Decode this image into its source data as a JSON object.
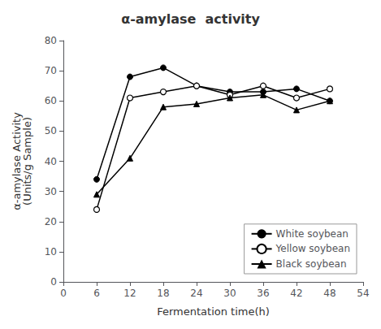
{
  "chart_data": {
    "type": "line",
    "title": "α-amylase  activity",
    "xlabel": "Fermentation time(h)",
    "ylabel": "α-amylase Activity\n(Units/g Sample)",
    "x": [
      6,
      12,
      18,
      24,
      30,
      36,
      42,
      48
    ],
    "series": [
      {
        "name": "White soybean",
        "color": "#000000",
        "marker": "circle",
        "values": [
          34,
          68,
          71,
          65,
          63,
          63,
          64,
          60
        ]
      },
      {
        "name": "Yellow soybean",
        "color": "#000000",
        "marker": "open-circle",
        "values": [
          24,
          61,
          63,
          65,
          62,
          65,
          61,
          64
        ]
      },
      {
        "name": "Black soybean",
        "color": "#000000",
        "marker": "triangle",
        "values": [
          29,
          41,
          58,
          59,
          61,
          62,
          57,
          60
        ]
      }
    ],
    "xlim": [
      0,
      54
    ],
    "ylim": [
      0,
      80
    ],
    "xticks": [
      0,
      6,
      12,
      18,
      24,
      30,
      36,
      42,
      48,
      54
    ],
    "yticks": [
      0,
      10,
      20,
      30,
      40,
      50,
      60,
      70,
      80
    ],
    "legend": "lower right",
    "grid": false
  }
}
